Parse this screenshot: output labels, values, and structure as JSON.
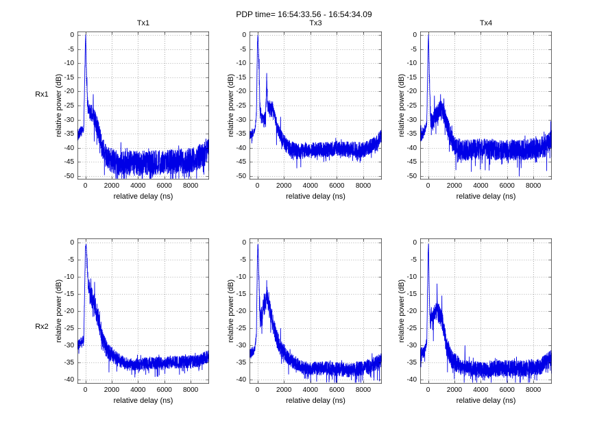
{
  "figure": {
    "title": "PDP time= 16:54:33.56 - 16:54:34.09",
    "row_labels": [
      "Rx1",
      "Rx2"
    ],
    "col_titles": [
      "Tx1",
      "Tx3",
      "Tx4"
    ],
    "xlabel": "relative delay (ns)",
    "ylabel": "relative power (dB)",
    "colors": {
      "trace": "#0000e6",
      "axes": "#000000",
      "grid": "#666666",
      "background": "#ffffff",
      "text": "#000000"
    }
  },
  "chart_data": [
    {
      "type": "line",
      "row": 0,
      "col": 0,
      "title": "Tx1",
      "row_label": "Rx1",
      "xlabel": "relative delay (ns)",
      "ylabel": "relative power (dB)",
      "xlim": [
        -600,
        9400
      ],
      "ylim": [
        -50,
        0
      ],
      "xticks": [
        0,
        2000,
        4000,
        6000,
        8000
      ],
      "yticks": [
        0,
        -5,
        -10,
        -15,
        -20,
        -25,
        -30,
        -35,
        -40,
        -45,
        -50
      ],
      "grid": true,
      "peak_db": 0,
      "peak_delay_ns": 0,
      "noise_floor_db": -45,
      "envelope_db": [
        [
          -600,
          -35
        ],
        [
          -120,
          -33
        ],
        [
          0,
          -3
        ],
        [
          30,
          0
        ],
        [
          90,
          -15
        ],
        [
          160,
          -24
        ],
        [
          300,
          -27
        ],
        [
          600,
          -28
        ],
        [
          900,
          -32
        ],
        [
          1200,
          -38
        ],
        [
          1600,
          -43
        ],
        [
          2500,
          -45
        ],
        [
          5000,
          -45
        ],
        [
          8000,
          -44
        ],
        [
          9000,
          -42
        ],
        [
          9400,
          -39
        ]
      ],
      "noise_amp_db": [
        [
          -600,
          2.5
        ],
        [
          -60,
          1
        ],
        [
          30,
          0.6
        ],
        [
          200,
          3
        ],
        [
          800,
          3.5
        ],
        [
          1500,
          4
        ],
        [
          2200,
          4.5
        ],
        [
          9400,
          4.5
        ]
      ],
      "spikes": [
        [
          120,
          -15
        ],
        [
          600,
          -21
        ],
        [
          2700,
          -38
        ]
      ],
      "seed": 11
    },
    {
      "type": "line",
      "row": 0,
      "col": 1,
      "title": "Tx3",
      "row_label": "Rx1",
      "xlabel": "relative delay (ns)",
      "ylabel": "relative power (dB)",
      "xlim": [
        -600,
        9400
      ],
      "ylim": [
        -50,
        0
      ],
      "xticks": [
        0,
        2000,
        4000,
        6000,
        8000
      ],
      "yticks": [
        0,
        -5,
        -10,
        -15,
        -20,
        -25,
        -30,
        -35,
        -40,
        -45,
        -50
      ],
      "grid": true,
      "peak_db": 0,
      "peak_delay_ns": 0,
      "noise_floor_db": -40,
      "envelope_db": [
        [
          -600,
          -35
        ],
        [
          -200,
          -34
        ],
        [
          -80,
          -28
        ],
        [
          0,
          -3
        ],
        [
          40,
          0
        ],
        [
          110,
          -10
        ],
        [
          200,
          -27
        ],
        [
          400,
          -30
        ],
        [
          620,
          -29
        ],
        [
          700,
          -17
        ],
        [
          780,
          -24
        ],
        [
          950,
          -26
        ],
        [
          1150,
          -26
        ],
        [
          1400,
          -31
        ],
        [
          1700,
          -35
        ],
        [
          2200,
          -39
        ],
        [
          3000,
          -41
        ],
        [
          4500,
          -40.5
        ],
        [
          6000,
          -40
        ],
        [
          8000,
          -40.5
        ],
        [
          9000,
          -38
        ],
        [
          9400,
          -35.5
        ]
      ],
      "noise_amp_db": [
        [
          -600,
          2
        ],
        [
          -60,
          1
        ],
        [
          40,
          0.6
        ],
        [
          200,
          2.5
        ],
        [
          900,
          3
        ],
        [
          1600,
          2.5
        ],
        [
          2500,
          2.8
        ],
        [
          9400,
          2.8
        ]
      ],
      "spikes": [
        [
          130,
          -8.5
        ],
        [
          700,
          -13.5
        ],
        [
          1750,
          -29
        ]
      ],
      "seed": 12
    },
    {
      "type": "line",
      "row": 0,
      "col": 2,
      "title": "Tx4",
      "row_label": "Rx1",
      "xlabel": "relative delay (ns)",
      "ylabel": "relative power (dB)",
      "xlim": [
        -600,
        9400
      ],
      "ylim": [
        -50,
        0
      ],
      "xticks": [
        0,
        2000,
        4000,
        6000,
        8000
      ],
      "yticks": [
        0,
        -5,
        -10,
        -15,
        -20,
        -25,
        -30,
        -35,
        -40,
        -45,
        -50
      ],
      "grid": true,
      "peak_db": 0,
      "peak_delay_ns": 0,
      "noise_floor_db": -40,
      "envelope_db": [
        [
          -600,
          -35
        ],
        [
          -300,
          -34
        ],
        [
          -100,
          -31
        ],
        [
          0,
          -4
        ],
        [
          35,
          0
        ],
        [
          100,
          -15
        ],
        [
          200,
          -30
        ],
        [
          350,
          -31
        ],
        [
          500,
          -29
        ],
        [
          700,
          -27
        ],
        [
          900,
          -26
        ],
        [
          1100,
          -27
        ],
        [
          1300,
          -29
        ],
        [
          1600,
          -34
        ],
        [
          2000,
          -39
        ],
        [
          2600,
          -40.5
        ],
        [
          4000,
          -40
        ],
        [
          6000,
          -40.5
        ],
        [
          8000,
          -40
        ],
        [
          9000,
          -39
        ],
        [
          9400,
          -36
        ]
      ],
      "noise_amp_db": [
        [
          -600,
          3
        ],
        [
          -60,
          1.2
        ],
        [
          35,
          0.6
        ],
        [
          200,
          3
        ],
        [
          800,
          3.5
        ],
        [
          1600,
          3.5
        ],
        [
          2500,
          3.8
        ],
        [
          9400,
          3.8
        ]
      ],
      "spikes": [
        [
          480,
          -21.5
        ],
        [
          950,
          -21
        ],
        [
          1200,
          -22.5
        ]
      ],
      "seed": 13
    },
    {
      "type": "line",
      "row": 1,
      "col": 0,
      "title": "Tx1",
      "row_label": "Rx2",
      "xlabel": "relative delay (ns)",
      "ylabel": "relative power (dB)",
      "xlim": [
        -600,
        9400
      ],
      "ylim": [
        -40,
        0
      ],
      "xticks": [
        0,
        2000,
        4000,
        6000,
        8000
      ],
      "yticks": [
        0,
        -5,
        -10,
        -15,
        -20,
        -25,
        -30,
        -35,
        -40
      ],
      "grid": true,
      "peak_db": 0,
      "peak_delay_ns": 0,
      "noise_floor_db": -35,
      "envelope_db": [
        [
          -600,
          -30
        ],
        [
          -120,
          -28
        ],
        [
          0,
          -2
        ],
        [
          60,
          0
        ],
        [
          120,
          -5
        ],
        [
          220,
          -13
        ],
        [
          500,
          -16
        ],
        [
          800,
          -19
        ],
        [
          1100,
          -24
        ],
        [
          1400,
          -29
        ],
        [
          1800,
          -32
        ],
        [
          2500,
          -34
        ],
        [
          3200,
          -35.5
        ],
        [
          5000,
          -35
        ],
        [
          6500,
          -34.8
        ],
        [
          8500,
          -34.5
        ],
        [
          9400,
          -33
        ]
      ],
      "noise_amp_db": [
        [
          -600,
          1.6
        ],
        [
          -60,
          1
        ],
        [
          60,
          0.5
        ],
        [
          250,
          3.2
        ],
        [
          900,
          3.2
        ],
        [
          1500,
          2.6
        ],
        [
          3000,
          1.8
        ],
        [
          9400,
          1.9
        ]
      ],
      "spikes": [
        [
          140,
          -4.5
        ],
        [
          420,
          -10.5
        ],
        [
          700,
          -11.5
        ]
      ],
      "seed": 14
    },
    {
      "type": "line",
      "row": 1,
      "col": 1,
      "title": "Tx3",
      "row_label": "Rx2",
      "xlabel": "relative delay (ns)",
      "ylabel": "relative power (dB)",
      "xlim": [
        -600,
        9400
      ],
      "ylim": [
        -40,
        0
      ],
      "xticks": [
        0,
        2000,
        4000,
        6000,
        8000
      ],
      "yticks": [
        0,
        -5,
        -10,
        -15,
        -20,
        -25,
        -30,
        -35,
        -40
      ],
      "grid": true,
      "peak_db": 0,
      "peak_delay_ns": 0,
      "noise_floor_db": -37,
      "envelope_db": [
        [
          -600,
          -32.5
        ],
        [
          -200,
          -31
        ],
        [
          -80,
          -27
        ],
        [
          0,
          -3
        ],
        [
          45,
          0
        ],
        [
          110,
          -10
        ],
        [
          200,
          -22
        ],
        [
          380,
          -20
        ],
        [
          560,
          -17.5
        ],
        [
          730,
          -15
        ],
        [
          900,
          -19
        ],
        [
          1100,
          -22
        ],
        [
          1400,
          -27
        ],
        [
          1800,
          -31
        ],
        [
          2500,
          -34
        ],
        [
          3500,
          -36.5
        ],
        [
          5000,
          -36.5
        ],
        [
          7000,
          -37
        ],
        [
          8500,
          -36
        ],
        [
          9400,
          -34
        ]
      ],
      "noise_amp_db": [
        [
          -600,
          1.8
        ],
        [
          -60,
          1
        ],
        [
          45,
          0.6
        ],
        [
          250,
          3
        ],
        [
          900,
          3
        ],
        [
          1600,
          2.6
        ],
        [
          3000,
          2
        ],
        [
          9400,
          2.2
        ]
      ],
      "spikes": [
        [
          700,
          -11
        ],
        [
          860,
          -14.5
        ],
        [
          1750,
          -25
        ]
      ],
      "seed": 15
    },
    {
      "type": "line",
      "row": 1,
      "col": 2,
      "title": "Tx4",
      "row_label": "Rx2",
      "xlabel": "relative delay (ns)",
      "ylabel": "relative power (dB)",
      "xlim": [
        -600,
        9400
      ],
      "ylim": [
        -40,
        0
      ],
      "xticks": [
        0,
        2000,
        4000,
        6000,
        8000
      ],
      "yticks": [
        0,
        -5,
        -10,
        -15,
        -20,
        -25,
        -30,
        -35,
        -40
      ],
      "grid": true,
      "peak_db": 0,
      "peak_delay_ns": 0,
      "noise_floor_db": -37,
      "envelope_db": [
        [
          -600,
          -32
        ],
        [
          -300,
          -32
        ],
        [
          -100,
          -29
        ],
        [
          0,
          -3
        ],
        [
          35,
          0
        ],
        [
          90,
          -15
        ],
        [
          160,
          -23
        ],
        [
          300,
          -22
        ],
        [
          500,
          -20.5
        ],
        [
          700,
          -19.5
        ],
        [
          900,
          -21
        ],
        [
          1100,
          -23
        ],
        [
          1400,
          -30
        ],
        [
          1800,
          -34
        ],
        [
          2500,
          -36
        ],
        [
          4000,
          -37
        ],
        [
          5500,
          -36.5
        ],
        [
          7000,
          -36.5
        ],
        [
          8500,
          -36
        ],
        [
          9400,
          -33.5
        ]
      ],
      "noise_amp_db": [
        [
          -600,
          2.2
        ],
        [
          -60,
          1.2
        ],
        [
          35,
          0.6
        ],
        [
          250,
          2.8
        ],
        [
          900,
          2.8
        ],
        [
          1600,
          2.8
        ],
        [
          3000,
          2.4
        ],
        [
          9400,
          2.5
        ]
      ],
      "spikes": [
        [
          680,
          -12
        ],
        [
          1050,
          -15.5
        ],
        [
          2800,
          -30
        ]
      ],
      "seed": 16
    }
  ]
}
